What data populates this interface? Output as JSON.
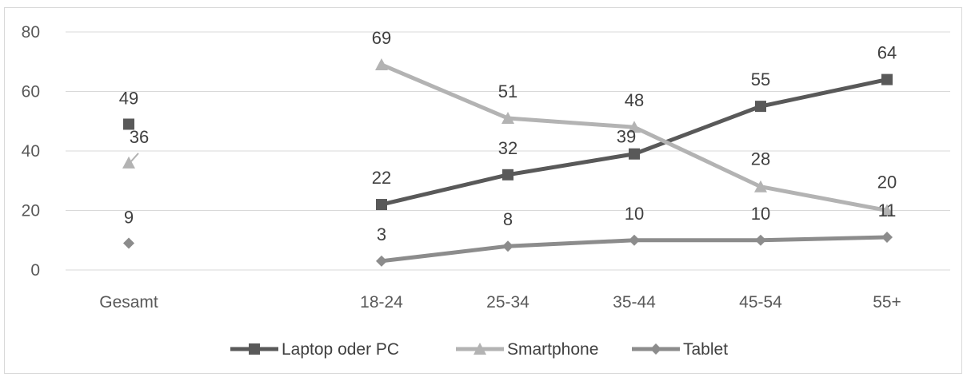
{
  "chart_data": {
    "type": "line",
    "categories": [
      "Gesamt",
      "",
      "18-24",
      "25-34",
      "35-44",
      "45-54",
      "55+"
    ],
    "ylim": [
      0,
      80
    ],
    "yticks": [
      0,
      20,
      40,
      60,
      80
    ],
    "grid": true,
    "legend_position": "bottom",
    "series": [
      {
        "name": "Laptop oder PC",
        "color": "#595959",
        "marker": "square",
        "values": [
          49,
          null,
          22,
          32,
          39,
          55,
          64
        ],
        "labels": [
          "49",
          "",
          "22",
          "32",
          "39",
          "55",
          "64"
        ]
      },
      {
        "name": "Smartphone",
        "color": "#b3b3b3",
        "marker": "triangle",
        "values": [
          36,
          null,
          69,
          51,
          48,
          28,
          20
        ],
        "labels": [
          "36",
          "",
          "69",
          "51",
          "48",
          "28",
          "20"
        ]
      },
      {
        "name": "Tablet",
        "color": "#8c8c8c",
        "marker": "diamond",
        "values": [
          9,
          null,
          3,
          8,
          10,
          10,
          11
        ],
        "labels": [
          "9",
          "",
          "3",
          "8",
          "10",
          "10",
          "11"
        ]
      }
    ]
  }
}
